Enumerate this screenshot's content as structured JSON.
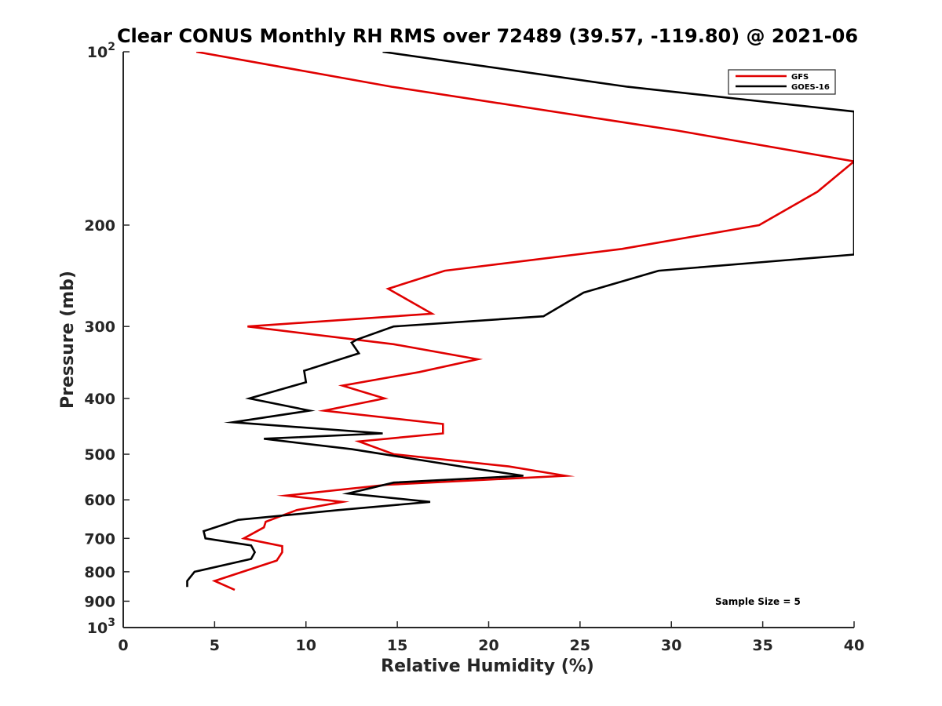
{
  "chart_data": {
    "type": "line",
    "title": "Clear CONUS Monthly RH RMS over 72489 (39.57, -119.80) @ 2021-06",
    "xlabel": "Relative Humidity (%)",
    "ylabel": "Pressure (mb)",
    "xlim": [
      0,
      40
    ],
    "ylim": [
      100,
      1000
    ],
    "yscale": "log",
    "yreversed": true,
    "grid": false,
    "legend_position": "top-right",
    "x_ticks": [
      0,
      5,
      10,
      15,
      20,
      25,
      30,
      35,
      40
    ],
    "y_ticks": [
      {
        "value": 100,
        "base": "10",
        "exp": "2"
      },
      {
        "value": 200,
        "label": "200"
      },
      {
        "value": 300,
        "label": "300"
      },
      {
        "value": 400,
        "label": "400"
      },
      {
        "value": 500,
        "label": "500"
      },
      {
        "value": 600,
        "label": "600"
      },
      {
        "value": 700,
        "label": "700"
      },
      {
        "value": 800,
        "label": "800"
      },
      {
        "value": 900,
        "label": "900"
      },
      {
        "value": 1000,
        "base": "10",
        "exp": "3"
      }
    ],
    "series": [
      {
        "name": "GFS",
        "color": "#e00000",
        "points": [
          [
            4.0,
            100
          ],
          [
            14.7,
            115
          ],
          [
            30.3,
            137
          ],
          [
            40.0,
            155
          ],
          [
            38.0,
            175
          ],
          [
            34.8,
            200
          ],
          [
            27.3,
            220
          ],
          [
            17.6,
            240
          ],
          [
            14.5,
            258
          ],
          [
            16.9,
            285
          ],
          [
            6.8,
            300
          ],
          [
            14.8,
            322
          ],
          [
            19.4,
            342
          ],
          [
            16.2,
            360
          ],
          [
            12.0,
            380
          ],
          [
            14.3,
            400
          ],
          [
            11.0,
            420
          ],
          [
            17.5,
            443
          ],
          [
            17.5,
            460
          ],
          [
            12.9,
            475
          ],
          [
            14.8,
            500
          ],
          [
            21.1,
            525
          ],
          [
            24.2,
            545
          ],
          [
            14.4,
            565
          ],
          [
            8.9,
            590
          ],
          [
            12.0,
            605
          ],
          [
            9.5,
            625
          ],
          [
            7.8,
            655
          ],
          [
            7.7,
            670
          ],
          [
            6.6,
            700
          ],
          [
            8.7,
            722
          ],
          [
            8.7,
            740
          ],
          [
            8.4,
            765
          ],
          [
            5.0,
            830
          ],
          [
            6.1,
            860
          ]
        ]
      },
      {
        "name": "GOES-16",
        "color": "#000000",
        "points": [
          [
            14.2,
            100
          ],
          [
            27.6,
            115
          ],
          [
            40.0,
            127
          ],
          [
            40.0,
            225
          ],
          [
            29.3,
            240
          ],
          [
            25.2,
            262
          ],
          [
            23.0,
            288
          ],
          [
            14.8,
            300
          ],
          [
            12.8,
            316
          ],
          [
            12.5,
            320
          ],
          [
            12.9,
            334
          ],
          [
            9.9,
            358
          ],
          [
            10.0,
            375
          ],
          [
            6.9,
            400
          ],
          [
            10.2,
            420
          ],
          [
            6.0,
            440
          ],
          [
            14.2,
            460
          ],
          [
            7.7,
            470
          ],
          [
            12.5,
            490
          ],
          [
            19.3,
            530
          ],
          [
            21.9,
            545
          ],
          [
            14.8,
            560
          ],
          [
            12.3,
            585
          ],
          [
            16.8,
            605
          ],
          [
            11.8,
            625
          ],
          [
            6.3,
            650
          ],
          [
            4.4,
            680
          ],
          [
            4.5,
            700
          ],
          [
            7.0,
            720
          ],
          [
            7.2,
            740
          ],
          [
            7.0,
            760
          ],
          [
            3.9,
            800
          ],
          [
            3.5,
            830
          ],
          [
            3.5,
            850
          ]
        ]
      }
    ],
    "annotation": "Sample Size = 5"
  }
}
